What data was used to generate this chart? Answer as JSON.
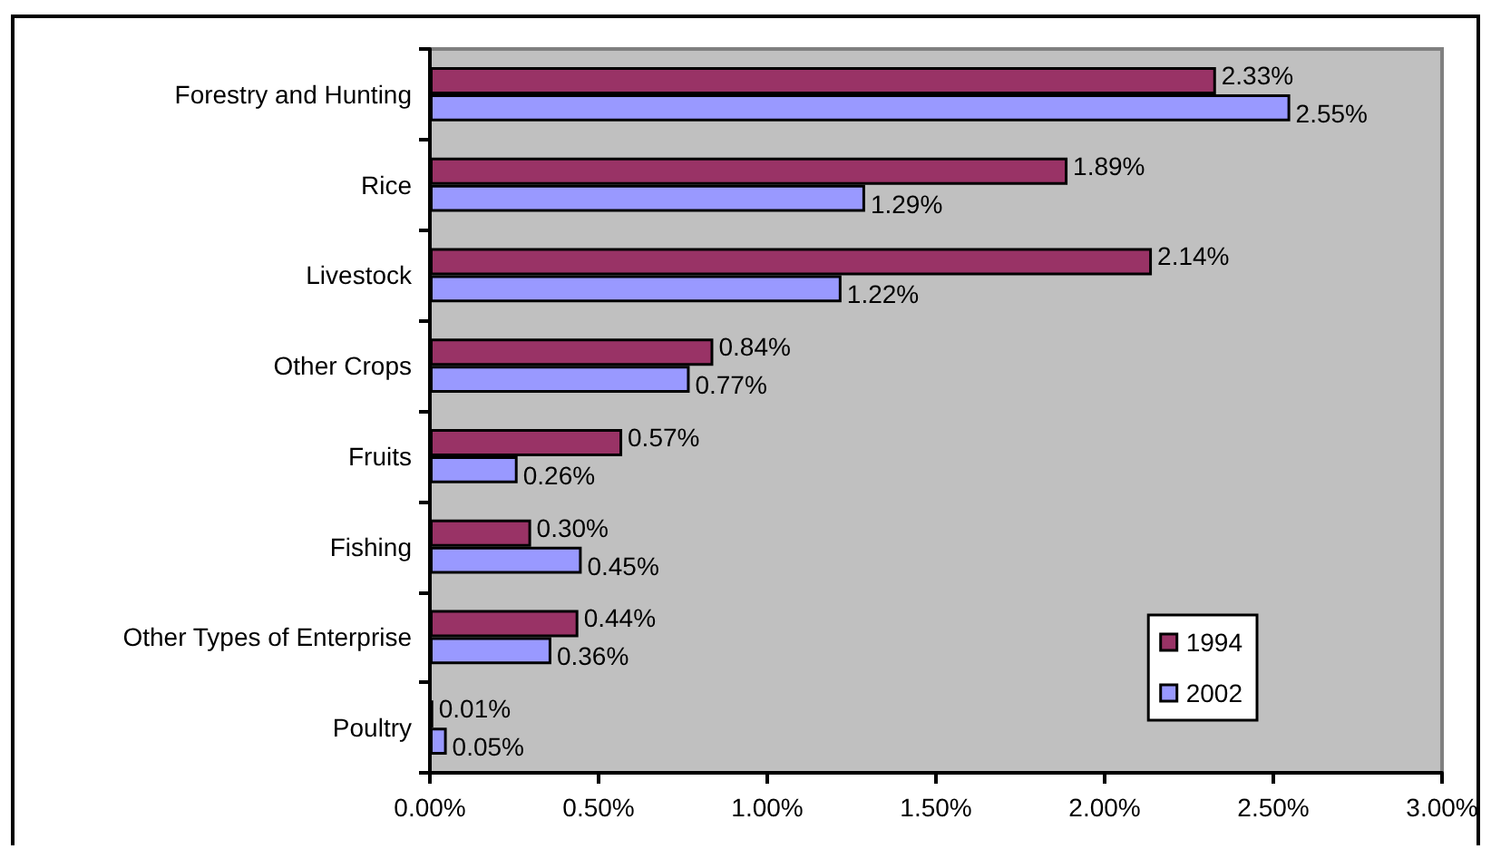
{
  "chart_data": {
    "type": "bar",
    "orientation": "horizontal",
    "grid": false,
    "legend": "bottom right",
    "categories": [
      "Forestry and Hunting",
      "Rice",
      "Livestock",
      "Other Crops",
      "Fruits",
      "Fishing",
      "Other Types of Enterprise",
      "Poultry"
    ],
    "series": [
      {
        "name": "1994",
        "color": "#993366",
        "values": [
          2.33,
          1.89,
          2.14,
          0.84,
          0.57,
          0.3,
          0.44,
          0.01
        ],
        "value_labels": [
          "2.33%",
          "1.89%",
          "2.14%",
          "0.84%",
          "0.57%",
          "0.30%",
          "0.44%",
          "0.01%"
        ]
      },
      {
        "name": "2002",
        "color": "#9999ff",
        "values": [
          2.55,
          1.29,
          1.22,
          0.77,
          0.26,
          0.45,
          0.36,
          0.05
        ],
        "value_labels": [
          "2.55%",
          "1.29%",
          "1.22%",
          "0.77%",
          "0.26%",
          "0.45%",
          "0.36%",
          "0.05%"
        ]
      }
    ],
    "xlim": [
      0,
      3
    ],
    "xticks": [
      {
        "value": 0,
        "label": "0.00%"
      },
      {
        "value": 0.5,
        "label": "0.50%"
      },
      {
        "value": 1,
        "label": "1.00%"
      },
      {
        "value": 1.5,
        "label": "1.50%"
      },
      {
        "value": 2,
        "label": "2.00%"
      },
      {
        "value": 2.5,
        "label": "2.50%"
      },
      {
        "value": 3,
        "label": "3.00%"
      }
    ]
  }
}
